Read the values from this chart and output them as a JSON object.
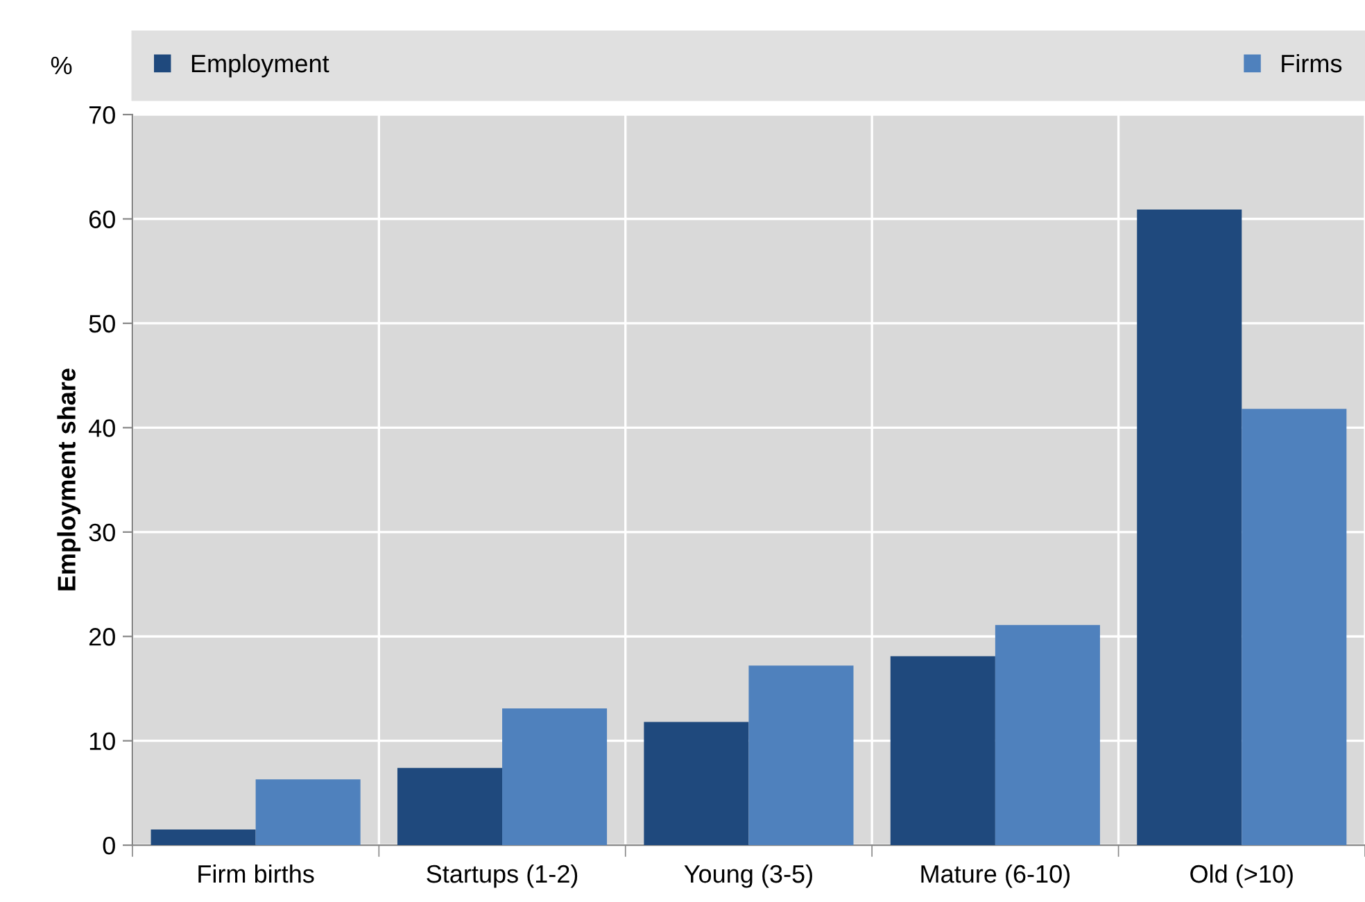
{
  "chart_data": {
    "type": "bar",
    "ylabel": "Employment share",
    "annotations": [
      "%"
    ],
    "categories": [
      "Firm births",
      "Startups (1-2)",
      "Young (3-5)",
      "Mature (6-10)",
      "Old (>10)"
    ],
    "series": [
      {
        "name": "Employment",
        "color": "#1f497d",
        "values": [
          1.5,
          7.4,
          11.8,
          18.1,
          60.9
        ]
      },
      {
        "name": "Firms",
        "color": "#4f81bd",
        "values": [
          6.3,
          13.1,
          17.2,
          21.1,
          41.8
        ]
      }
    ],
    "ylim": [
      0,
      70
    ],
    "yticks": [
      0,
      10,
      20,
      30,
      40,
      50,
      60,
      70
    ],
    "grid": true,
    "legend": "top"
  }
}
